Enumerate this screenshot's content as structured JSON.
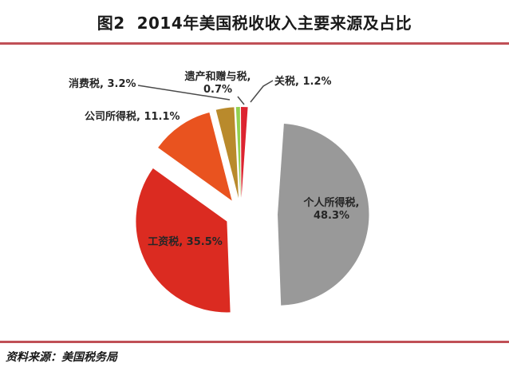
{
  "figure": {
    "title": "图2  2014年美国税收收入主要来源及占比",
    "source_note": "资料来源：美国税务局",
    "rule_color": "#c05056"
  },
  "chart_data": {
    "type": "pie",
    "title": "2014年美国税收收入主要来源及占比",
    "legend": "none",
    "exploded": true,
    "slices": [
      {
        "key": "personal-income-tax",
        "name": "个人所得税",
        "value": 48.3,
        "color": "#999999",
        "label": "个人所得税,",
        "label2": "48.3%"
      },
      {
        "key": "payroll-tax",
        "name": "工资税",
        "value": 35.5,
        "color": "#db2b21",
        "label": "工资税, 35.5%"
      },
      {
        "key": "corporate-income-tax",
        "name": "公司所得税",
        "value": 11.1,
        "color": "#e9531f",
        "label": "公司所得税, 11.1%"
      },
      {
        "key": "consumption-tax",
        "name": "消费税",
        "value": 3.2,
        "color": "#b98a2c",
        "label": "消费税, 3.2%"
      },
      {
        "key": "estate-gift-tax",
        "name": "遗产和赠与税",
        "value": 0.7,
        "color": "#92d050",
        "label": "遗产和赠与税,",
        "label2": "0.7%"
      },
      {
        "key": "tariff",
        "name": "关税",
        "value": 1.2,
        "color": "#dc2430",
        "label": "关税, 1.2%"
      }
    ]
  }
}
